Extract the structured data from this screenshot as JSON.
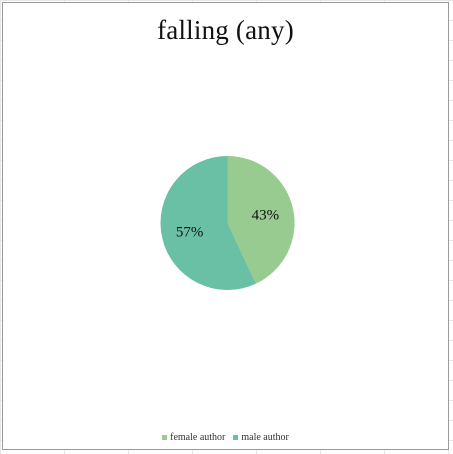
{
  "chart_data": {
    "type": "pie",
    "title": "falling (any)",
    "categories": [
      "female author",
      "male author"
    ],
    "values": [
      43,
      57
    ],
    "labels": [
      "43%",
      "57%"
    ],
    "colors": [
      "#97cb8f",
      "#69c0a5"
    ],
    "legend_position": "bottom",
    "grid": false
  }
}
